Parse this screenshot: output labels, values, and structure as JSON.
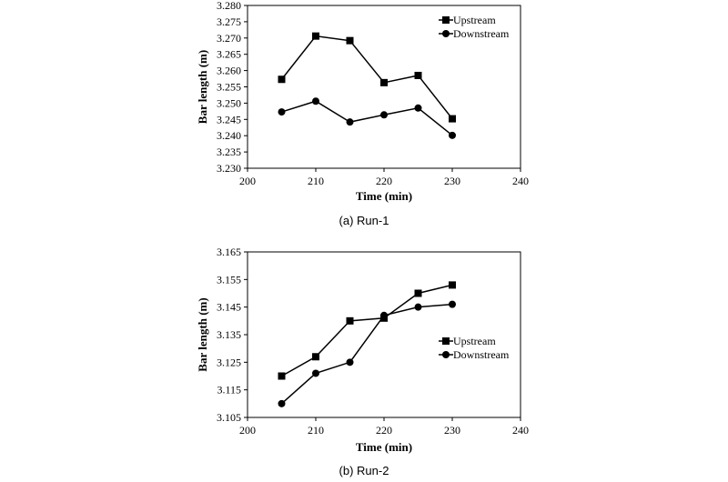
{
  "chart_data": [
    {
      "type": "line",
      "caption": "(a)  Run-1",
      "xlabel": "Time (min)",
      "ylabel": "Bar length (m)",
      "xlim": [
        200,
        240
      ],
      "ylim": [
        3.23,
        3.28
      ],
      "xticks": [
        "200",
        "210",
        "220",
        "230",
        "240"
      ],
      "yticks": [
        "3.230",
        "3.235",
        "3.240",
        "3.245",
        "3.250",
        "3.255",
        "3.260",
        "3.265",
        "3.270",
        "3.275",
        "3.280"
      ],
      "x": [
        205,
        210,
        215,
        220,
        225,
        230
      ],
      "legend_position": "top-right",
      "series": [
        {
          "name": "Upstream",
          "marker": "square",
          "values": [
            3.2573,
            3.2706,
            3.2692,
            3.2563,
            3.2585,
            3.2452
          ]
        },
        {
          "name": "Downstream",
          "marker": "circle",
          "values": [
            3.2473,
            3.2506,
            3.2442,
            3.2464,
            3.2485,
            3.2401
          ]
        }
      ]
    },
    {
      "type": "line",
      "caption": "(b)  Run-2",
      "xlabel": "Time (min)",
      "ylabel": "Bar length (m)",
      "xlim": [
        200,
        240
      ],
      "ylim": [
        3.105,
        3.165
      ],
      "xticks": [
        "200",
        "210",
        "220",
        "230",
        "240"
      ],
      "yticks": [
        "3.105",
        "3.115",
        "3.125",
        "3.135",
        "3.145",
        "3.155",
        "3.165"
      ],
      "x": [
        205,
        210,
        215,
        220,
        225,
        230
      ],
      "legend_position": "center-right",
      "series": [
        {
          "name": "Upstream",
          "marker": "square",
          "values": [
            3.12,
            3.127,
            3.14,
            3.141,
            3.15,
            3.153
          ]
        },
        {
          "name": "Downstream",
          "marker": "circle",
          "values": [
            3.11,
            3.121,
            3.125,
            3.142,
            3.145,
            3.146
          ]
        }
      ]
    }
  ]
}
